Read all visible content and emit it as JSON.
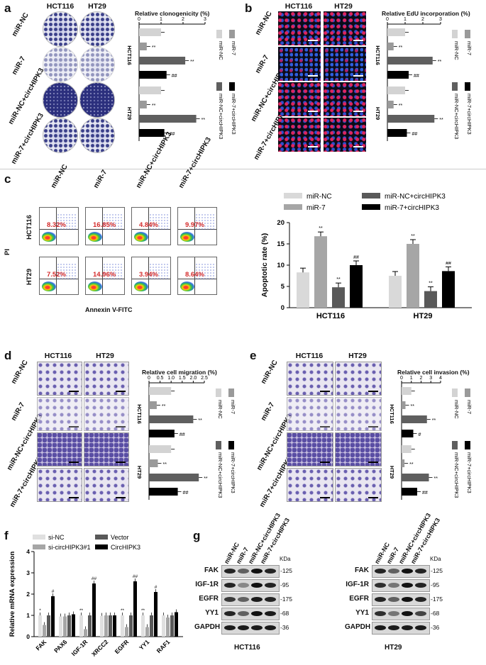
{
  "panels": {
    "a": {
      "letter": "a",
      "cols": [
        "HCT116",
        "HT29"
      ],
      "rows": [
        "miR-NC",
        "miR-7",
        "miR-NC+circHIPK3",
        "miR-7+circHIPK3"
      ],
      "chart_title": "Relative clonogenicity (%)",
      "axis_ticks": [
        "0",
        "1",
        "2",
        "3"
      ],
      "groups": [
        "HCT116",
        "HT29"
      ],
      "legend": [
        "miR-NC",
        "miR-7",
        "miR-NC+circHIPK3",
        "miR-7+circHIPK3"
      ]
    },
    "b": {
      "letter": "b",
      "cols": [
        "HCT116",
        "HT29"
      ],
      "rows": [
        "miR-NC",
        "miR-7",
        "miR-NC+circHIPK3",
        "miR-7+circHIPK3"
      ],
      "chart_title": "Relative EdU incorporation (%)",
      "axis_ticks": [
        "0",
        "1",
        "2",
        "3"
      ],
      "groups": [
        "HCT116",
        "HT29"
      ],
      "legend": [
        "miR-NC",
        "miR-7",
        "miR-NC+circHIPK3",
        "miR-7+circHIPK3"
      ]
    },
    "c": {
      "letter": "c",
      "cols": [
        "miR-NC",
        "miR-7",
        "miR-NC+circHIPK3",
        "miR-7+circHIPK3"
      ],
      "rows": [
        "HCT116",
        "HT29"
      ],
      "flow_pct": [
        [
          "8.32%",
          "16.85%",
          "4.84%",
          "9.97%"
        ],
        [
          "7.52%",
          "14.96%",
          "3.94%",
          "8.64%"
        ]
      ],
      "y_label": "PI",
      "x_label": "Annexin V-FITC",
      "chart_ylabel": "Apoptotic rate (%)",
      "chart_ticks": [
        "0",
        "5",
        "10",
        "15",
        "20"
      ],
      "groups": [
        "HCT116",
        "HT29"
      ],
      "legend": [
        "miR-NC",
        "miR-NC+circHIPK3",
        "miR-7",
        "miR-7+circHIPK3"
      ]
    },
    "d": {
      "letter": "d",
      "cols": [
        "HCT116",
        "HT29"
      ],
      "rows": [
        "miR-NC",
        "miR-7",
        "miR-NC+circHIPK3",
        "miR-7+circHIPK3"
      ],
      "chart_title": "Relative cell migration (%)",
      "axis_ticks": [
        "0",
        "0.5",
        "1.0",
        "1.5",
        "2.0",
        "2.5"
      ],
      "groups": [
        "HCT116",
        "HT29"
      ],
      "legend": [
        "miR-NC",
        "miR-7",
        "miR-NC+circHIPK3",
        "miR-7+circHIPK3"
      ]
    },
    "e": {
      "letter": "e",
      "cols": [
        "HCT116",
        "HT29"
      ],
      "rows": [
        "miR-NC",
        "miR-7",
        "miR-NC+circHIPK3",
        "miR-7+circHIPK3"
      ],
      "chart_title": "Relative cell invasion (%)",
      "axis_ticks": [
        "0",
        "1",
        "2",
        "3",
        "4"
      ],
      "groups": [
        "HCT116",
        "HT29"
      ],
      "legend": [
        "miR-NC",
        "miR-7",
        "miR-NC+circHIPK3",
        "miR-7+circHIPK3"
      ]
    },
    "f": {
      "letter": "f",
      "legend": [
        "si-NC",
        "si-circHIPK3#1",
        "Vector",
        "CircHIPK3"
      ],
      "ylabel": "Relative mRNA expression",
      "ticks": [
        "0",
        "1",
        "2",
        "3",
        "4"
      ]
    },
    "g": {
      "letter": "g",
      "lanes": [
        "miR-NC",
        "miR-7",
        "miR-NC+circHIPK3",
        "miR-7+circHIPK3"
      ],
      "kda": "KDa",
      "proteins": [
        "FAK",
        "IGF-1R",
        "EGFR",
        "YY1",
        "GAPDH"
      ],
      "sizes": [
        "-125",
        "-95",
        "-175",
        "-68",
        "-36"
      ],
      "cells": [
        "HCT116",
        "HT29"
      ]
    }
  },
  "chart_data": [
    {
      "type": "bar",
      "panel": "a",
      "title": "Relative clonogenicity (%)",
      "categories": [
        "HCT116",
        "HT29"
      ],
      "orientation": "horizontal",
      "xlim": [
        0,
        3
      ],
      "series": [
        {
          "name": "miR-NC",
          "values": [
            1.0,
            1.0
          ],
          "color": "#d3d3d3"
        },
        {
          "name": "miR-7",
          "values": [
            0.35,
            0.35
          ],
          "color": "#9a9a9a"
        },
        {
          "name": "miR-NC+circHIPK3",
          "values": [
            2.1,
            2.6
          ],
          "color": "#5f5f5f"
        },
        {
          "name": "miR-7+circHIPK3",
          "values": [
            1.25,
            1.15
          ],
          "color": "#000000"
        }
      ],
      "annotations": [
        [
          "",
          "**",
          "**",
          "##"
        ],
        [
          "",
          "**",
          "**",
          "##"
        ]
      ]
    },
    {
      "type": "bar",
      "panel": "b",
      "title": "Relative EdU incorporation (%)",
      "categories": [
        "HCT116",
        "HT29"
      ],
      "orientation": "horizontal",
      "xlim": [
        0,
        3
      ],
      "series": [
        {
          "name": "miR-NC",
          "values": [
            1.0,
            1.0
          ],
          "color": "#d3d3d3"
        },
        {
          "name": "miR-7",
          "values": [
            0.35,
            0.35
          ],
          "color": "#9a9a9a"
        },
        {
          "name": "miR-NC+circHIPK3",
          "values": [
            2.55,
            2.65
          ],
          "color": "#5f5f5f"
        },
        {
          "name": "miR-7+circHIPK3",
          "values": [
            1.2,
            1.1
          ],
          "color": "#000000"
        }
      ],
      "annotations": [
        [
          "",
          "**",
          "**",
          "##"
        ],
        [
          "",
          "**",
          "**",
          "##"
        ]
      ]
    },
    {
      "type": "bar",
      "panel": "c",
      "ylabel": "Apoptotic rate (%)",
      "categories": [
        "HCT116",
        "HT29"
      ],
      "ylim": [
        0,
        20
      ],
      "series": [
        {
          "name": "miR-NC",
          "values": [
            8.3,
            7.5
          ],
          "color": "#d9d9d9"
        },
        {
          "name": "miR-7",
          "values": [
            16.8,
            15.0
          ],
          "color": "#a6a6a6"
        },
        {
          "name": "miR-NC+circHIPK3",
          "values": [
            4.8,
            3.9
          ],
          "color": "#595959"
        },
        {
          "name": "miR-7+circHIPK3",
          "values": [
            10.0,
            8.6
          ],
          "color": "#000000"
        }
      ],
      "annotations": [
        [
          "",
          "**",
          "**",
          "##"
        ],
        [
          "",
          "**",
          "**",
          "##"
        ]
      ]
    },
    {
      "type": "bar",
      "panel": "d",
      "title": "Relative cell migration (%)",
      "categories": [
        "HCT116",
        "HT29"
      ],
      "orientation": "horizontal",
      "xlim": [
        0,
        2.5
      ],
      "series": [
        {
          "name": "miR-NC",
          "values": [
            1.0,
            1.0
          ],
          "color": "#d3d3d3"
        },
        {
          "name": "miR-7",
          "values": [
            0.35,
            0.4
          ],
          "color": "#9a9a9a"
        },
        {
          "name": "miR-NC+circHIPK3",
          "values": [
            2.0,
            2.25
          ],
          "color": "#5f5f5f"
        },
        {
          "name": "miR-7+circHIPK3",
          "values": [
            1.15,
            1.3
          ],
          "color": "#000000"
        }
      ],
      "annotations": [
        [
          "",
          "**",
          "**",
          "##"
        ],
        [
          "",
          "**",
          "**",
          "##"
        ]
      ]
    },
    {
      "type": "bar",
      "panel": "e",
      "title": "Relative cell invasion (%)",
      "categories": [
        "HCT116",
        "HT29"
      ],
      "orientation": "horizontal",
      "xlim": [
        0,
        4
      ],
      "series": [
        {
          "name": "miR-NC",
          "values": [
            1.0,
            1.0
          ],
          "color": "#d3d3d3"
        },
        {
          "name": "miR-7",
          "values": [
            0.4,
            0.3
          ],
          "color": "#9a9a9a"
        },
        {
          "name": "miR-NC+circHIPK3",
          "values": [
            2.6,
            2.8
          ],
          "color": "#5f5f5f"
        },
        {
          "name": "miR-7+circHIPK3",
          "values": [
            1.2,
            1.6
          ],
          "color": "#000000"
        }
      ],
      "annotations": [
        [
          "",
          "**",
          "**",
          "#"
        ],
        [
          "",
          "**",
          "**",
          "##"
        ]
      ]
    },
    {
      "type": "bar",
      "panel": "f",
      "ylabel": "Relative mRNA expression",
      "categories": [
        "FAK",
        "PAX6",
        "IGF-1R",
        "XRCC2",
        "EGFR",
        "YY1",
        "RAF1"
      ],
      "ylim": [
        0,
        4
      ],
      "series": [
        {
          "name": "si-NC",
          "values": [
            1.0,
            0.95,
            1.0,
            0.98,
            1.0,
            1.0,
            1.0
          ],
          "color": "#e0e0e0"
        },
        {
          "name": "si-circHIPK3#1",
          "values": [
            0.55,
            0.95,
            0.35,
            1.0,
            0.45,
            0.45,
            0.9
          ],
          "color": "#a6a6a6"
        },
        {
          "name": "Vector",
          "values": [
            1.0,
            1.0,
            1.0,
            1.0,
            1.0,
            1.0,
            1.0
          ],
          "color": "#595959"
        },
        {
          "name": "CircHIPK3",
          "values": [
            1.9,
            1.05,
            2.5,
            1.0,
            2.6,
            2.1,
            1.15
          ],
          "color": "#000000"
        }
      ],
      "annotations": [
        [
          "*",
          "",
          "**",
          "",
          "**",
          "**",
          ""
        ],
        [
          "",
          "",
          "",
          "",
          "",
          "",
          ""
        ],
        [
          "",
          "",
          "",
          "",
          "",
          "",
          ""
        ],
        [
          "#",
          "",
          "##",
          "",
          "##",
          "#",
          ""
        ]
      ]
    }
  ]
}
